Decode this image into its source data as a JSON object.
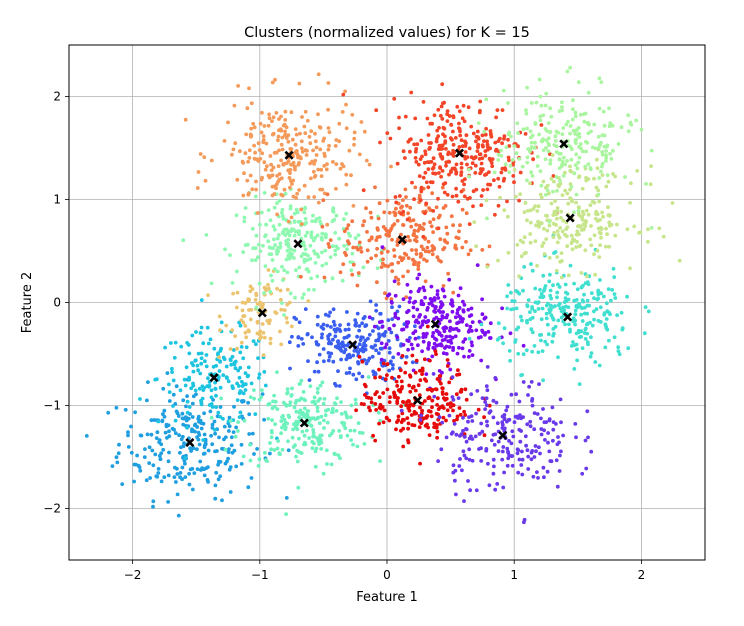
{
  "chart_data": {
    "type": "scatter",
    "title": "Clusters (normalized values) for K = 15",
    "xlabel": "Feature 1",
    "ylabel": "Feature 2",
    "xlim": [
      -2.5,
      2.5
    ],
    "ylim": [
      -2.5,
      2.5
    ],
    "xticks": [
      -2,
      -1,
      0,
      1,
      2
    ],
    "yticks": [
      -2,
      -1,
      0,
      1,
      2
    ],
    "xtick_labels": [
      "−2",
      "−1",
      "0",
      "1",
      "2"
    ],
    "ytick_labels": [
      "−2",
      "−1",
      "0",
      "1",
      "2"
    ],
    "grid": true,
    "point_color_centroid": "#000000",
    "clusters": [
      {
        "color": "#1f9fe0",
        "centroid": [
          -1.55,
          -1.36
        ],
        "spread": [
          0.28,
          0.27
        ],
        "points": 260
      },
      {
        "color": "#1dc4e0",
        "centroid": [
          -1.36,
          -0.73
        ],
        "spread": [
          0.22,
          0.23
        ],
        "points": 170
      },
      {
        "color": "#ecc46f",
        "centroid": [
          -0.98,
          -0.1
        ],
        "spread": [
          0.15,
          0.17
        ],
        "points": 90
      },
      {
        "color": "#6ef2bd",
        "centroid": [
          -0.65,
          -1.17
        ],
        "spread": [
          0.25,
          0.22
        ],
        "points": 230
      },
      {
        "color": "#3a5ef0",
        "centroid": [
          -0.27,
          -0.41
        ],
        "spread": [
          0.22,
          0.18
        ],
        "points": 220
      },
      {
        "color": "#8ff8b0",
        "centroid": [
          -0.7,
          0.57
        ],
        "spread": [
          0.24,
          0.22
        ],
        "points": 240
      },
      {
        "color": "#f49a5a",
        "centroid": [
          -0.77,
          1.43
        ],
        "spread": [
          0.27,
          0.27
        ],
        "points": 260
      },
      {
        "color": "#f47542",
        "centroid": [
          0.12,
          0.61
        ],
        "spread": [
          0.24,
          0.24
        ],
        "points": 230
      },
      {
        "color": "#f44528",
        "centroid": [
          0.57,
          1.45
        ],
        "spread": [
          0.27,
          0.27
        ],
        "points": 310
      },
      {
        "color": "#7e0ef0",
        "centroid": [
          0.38,
          -0.21
        ],
        "spread": [
          0.21,
          0.21
        ],
        "points": 250
      },
      {
        "color": "#e60a0a",
        "centroid": [
          0.24,
          -0.95
        ],
        "spread": [
          0.22,
          0.2
        ],
        "points": 230
      },
      {
        "color": "#6a3aea",
        "centroid": [
          0.91,
          -1.29
        ],
        "spread": [
          0.27,
          0.27
        ],
        "points": 230
      },
      {
        "color": "#40dfd0",
        "centroid": [
          1.42,
          -0.14
        ],
        "spread": [
          0.27,
          0.24
        ],
        "points": 260
      },
      {
        "color": "#c7e58a",
        "centroid": [
          1.44,
          0.82
        ],
        "spread": [
          0.27,
          0.24
        ],
        "points": 230
      },
      {
        "color": "#aaf59f",
        "centroid": [
          1.39,
          1.54
        ],
        "spread": [
          0.27,
          0.27
        ],
        "points": 230
      }
    ]
  }
}
